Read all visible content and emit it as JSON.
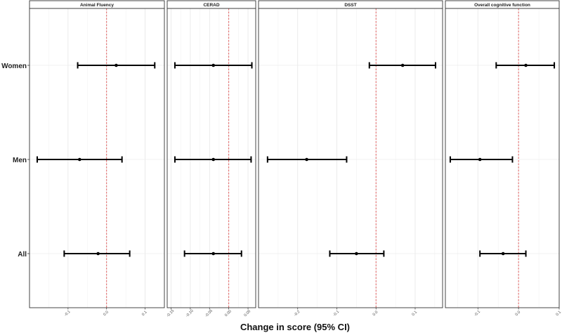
{
  "chart_data": {
    "type": "forest",
    "xlabel": "Change in score (95% CI)",
    "ylabel": "",
    "categories": [
      "Women",
      "Men",
      "All"
    ],
    "reference_line": 0,
    "panels": [
      {
        "title": "Animal Fluency",
        "xlim": [
          -0.2,
          0.15
        ],
        "ticks": [
          {
            "v": -0.1,
            "label": "-0.1"
          },
          {
            "v": 0.0,
            "label": "0.0"
          },
          {
            "v": 0.1,
            "label": "0.1"
          }
        ],
        "estimates": [
          {
            "group": "Women",
            "est": 0.025,
            "lo": -0.075,
            "hi": 0.125
          },
          {
            "group": "Men",
            "est": -0.07,
            "lo": -0.18,
            "hi": 0.04
          },
          {
            "group": "All",
            "est": -0.022,
            "lo": -0.11,
            "hi": 0.06
          }
        ]
      },
      {
        "title": "CERAD",
        "xlim": [
          -0.16,
          0.07
        ],
        "ticks": [
          {
            "v": -0.15,
            "label": "-0.15"
          },
          {
            "v": -0.1,
            "label": "-0.10"
          },
          {
            "v": -0.05,
            "label": "-0.05"
          },
          {
            "v": 0.0,
            "label": "0.00"
          },
          {
            "v": 0.05,
            "label": "0.05"
          }
        ],
        "estimates": [
          {
            "group": "Women",
            "est": -0.04,
            "lo": -0.14,
            "hi": 0.06
          },
          {
            "group": "Men",
            "est": -0.04,
            "lo": -0.14,
            "hi": 0.058
          },
          {
            "group": "All",
            "est": -0.04,
            "lo": -0.115,
            "hi": 0.033
          }
        ]
      },
      {
        "title": "DSST",
        "xlim": [
          -0.3,
          0.17
        ],
        "ticks": [
          {
            "v": -0.2,
            "label": "-0.2"
          },
          {
            "v": -0.1,
            "label": "-0.1"
          },
          {
            "v": 0.0,
            "label": "0.0"
          },
          {
            "v": 0.1,
            "label": "0.1"
          }
        ],
        "estimates": [
          {
            "group": "Women",
            "est": 0.068,
            "lo": -0.017,
            "hi": 0.152
          },
          {
            "group": "Men",
            "est": -0.177,
            "lo": -0.277,
            "hi": -0.075
          },
          {
            "group": "All",
            "est": -0.05,
            "lo": -0.118,
            "hi": 0.02
          }
        ]
      },
      {
        "title": "Overall cognitive function",
        "xlim": [
          -0.18,
          0.1
        ],
        "ticks": [
          {
            "v": -0.1,
            "label": "-0.1"
          },
          {
            "v": 0.0,
            "label": "0.0"
          },
          {
            "v": 0.1,
            "label": "0.1"
          }
        ],
        "estimates": [
          {
            "group": "Women",
            "est": 0.018,
            "lo": -0.055,
            "hi": 0.088
          },
          {
            "group": "Men",
            "est": -0.095,
            "lo": -0.168,
            "hi": -0.015
          },
          {
            "group": "All",
            "est": -0.038,
            "lo": -0.095,
            "hi": 0.018
          }
        ]
      }
    ]
  }
}
